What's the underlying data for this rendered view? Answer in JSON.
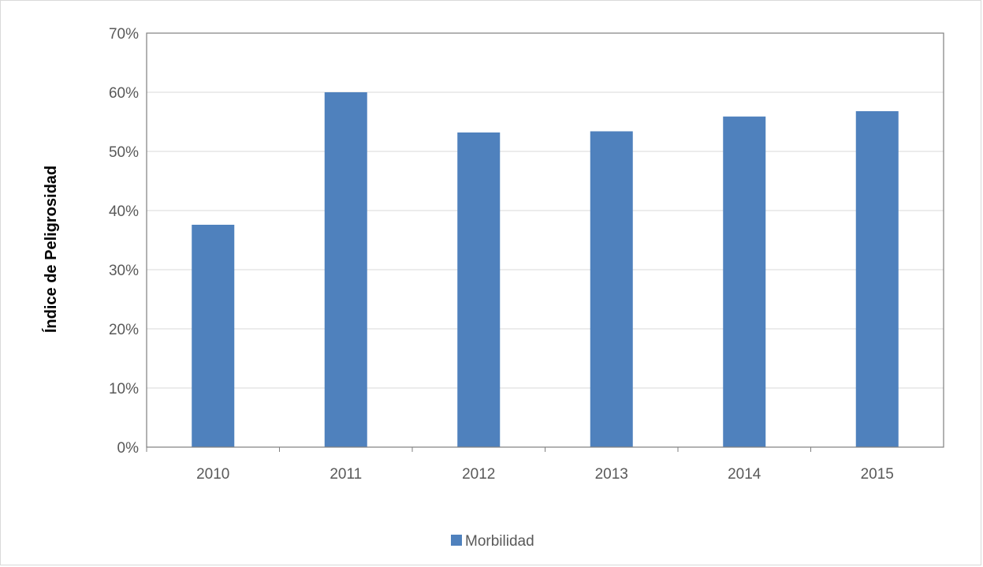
{
  "chart_data": {
    "type": "bar",
    "title": "",
    "xlabel": "",
    "ylabel": "Índice de Peligrosidad",
    "categories": [
      "2010",
      "2011",
      "2012",
      "2013",
      "2014",
      "2015"
    ],
    "series": [
      {
        "name": "Morbilidad",
        "values": [
          37.6,
          60.0,
          53.2,
          53.4,
          55.9,
          56.8
        ],
        "color": "#4f81bd"
      }
    ],
    "ylim": [
      0,
      70
    ],
    "yticks": [
      0,
      10,
      20,
      30,
      40,
      50,
      60,
      70
    ],
    "ytick_labels": [
      "0%",
      "10%",
      "20%",
      "30%",
      "40%",
      "50%",
      "60%",
      "70%"
    ],
    "grid": true,
    "legend": "bottom"
  }
}
